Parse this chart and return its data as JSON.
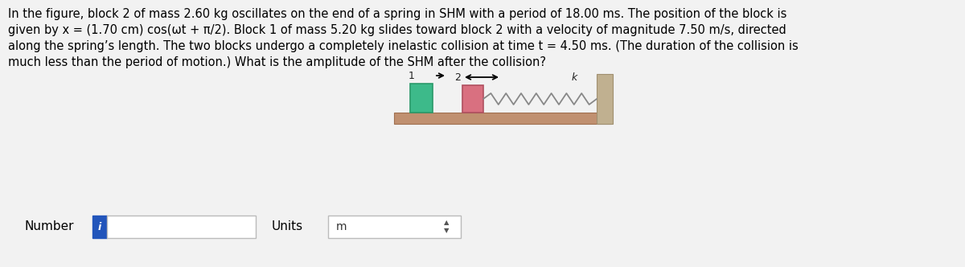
{
  "background_color": "#f2f2f2",
  "text_color": "#000000",
  "paragraph_lines": [
    "In the figure, block 2 of mass 2.60 kg oscillates on the end of a spring in SHM with a period of 18.00 ms. The position of the block is",
    "given by x = (1.70 cm) cos(ωt + π/2). Block 1 of mass 5.20 kg slides toward block 2 with a velocity of magnitude 7.50 m/s, directed",
    "along the spring’s length. The two blocks undergo a completely inelastic collision at time t = 4.50 ms. (The duration of the collision is",
    "much less than the period of motion.) What is the amplitude of the SHM after the collision?"
  ],
  "diagram": {
    "platform_color": "#c09070",
    "platform_edge": "#a07050",
    "block1_color": "#3dba8a",
    "block1_edge": "#2a9a6a",
    "block2_color": "#d97080",
    "block2_edge": "#b05060",
    "wall_color": "#c0b090",
    "wall_edge": "#a09070",
    "spring_color": "#888888",
    "label1": "1",
    "label2": "2",
    "label_k": "k"
  },
  "number_label": "Number",
  "units_label": "Units",
  "units_value": "m",
  "input_bg": "#ffffff",
  "input_border": "#bbbbbb",
  "info_button_color": "#2255bb",
  "info_button_text": "i"
}
